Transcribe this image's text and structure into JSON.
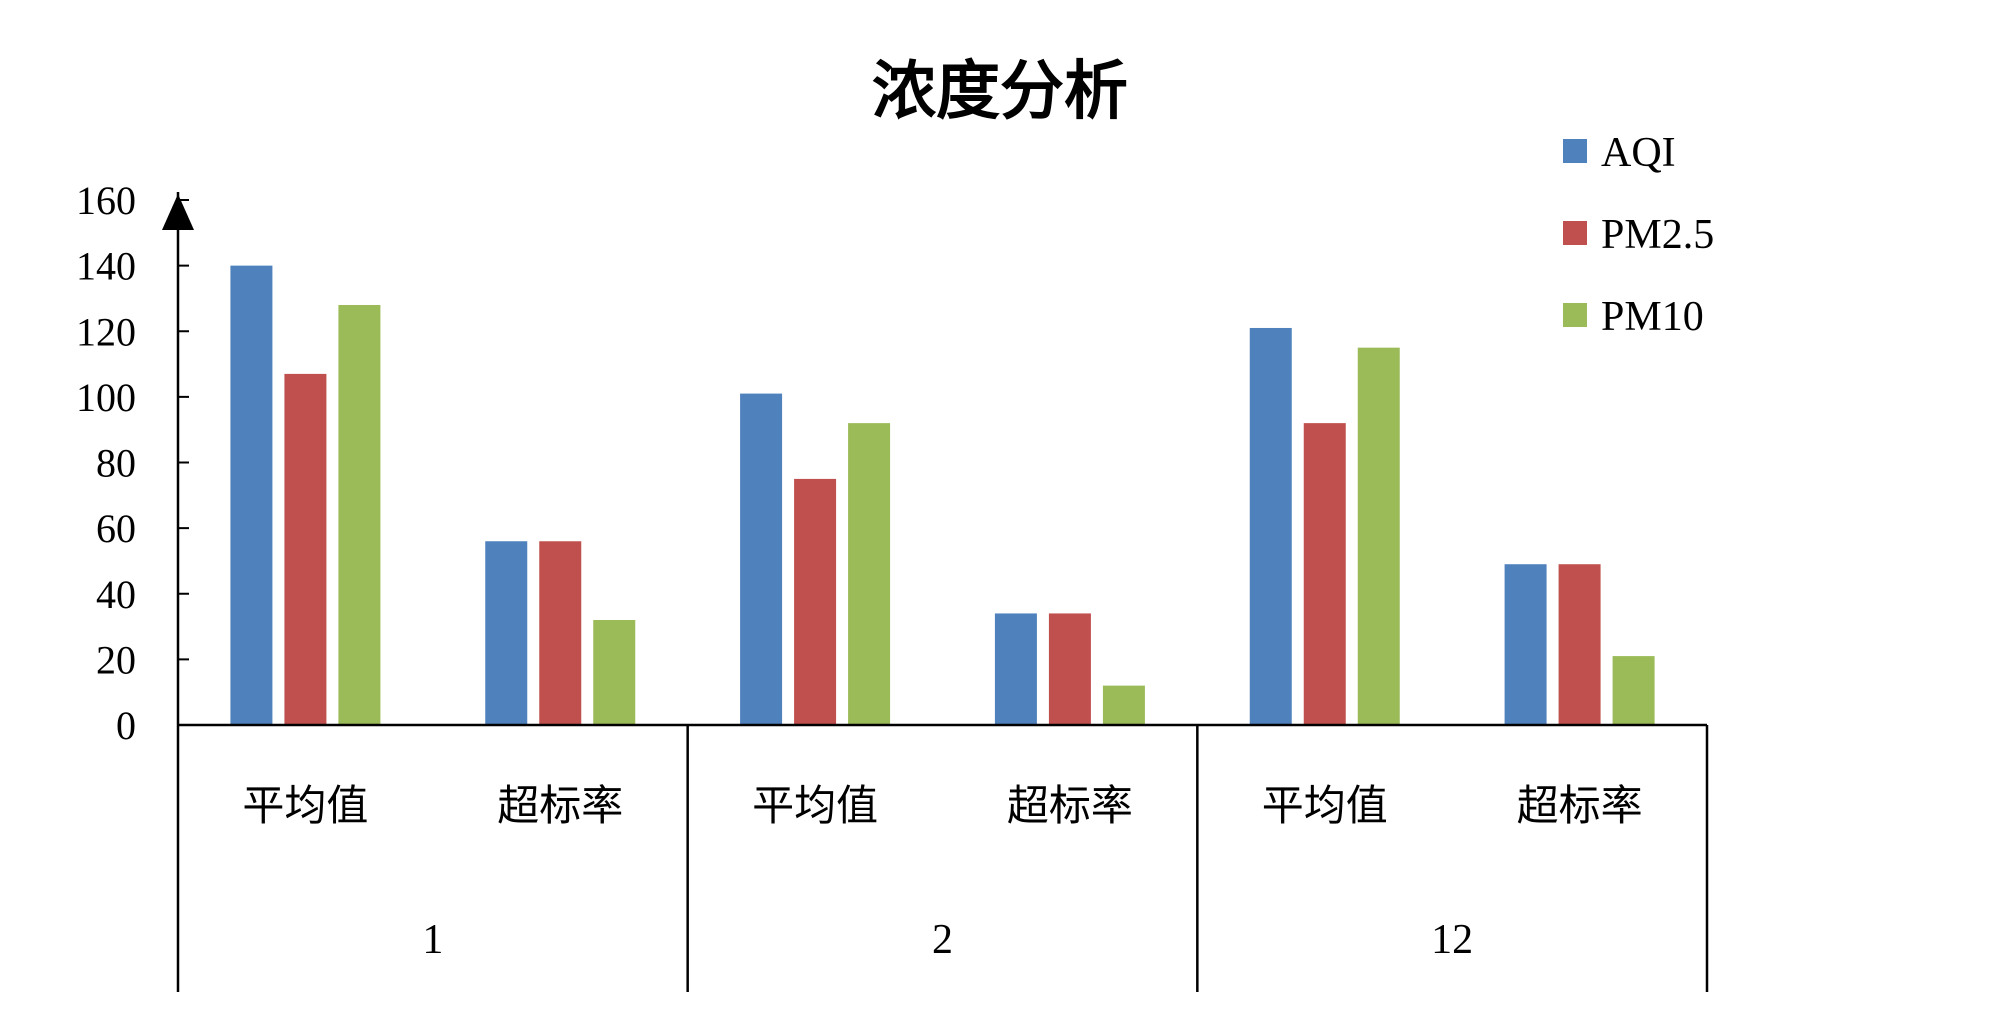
{
  "chart_data": {
    "type": "bar",
    "title": "浓度分析",
    "xlabel": "",
    "ylabel": "",
    "ylim": [
      0,
      160
    ],
    "yticks": [
      "0",
      "20",
      "40",
      "60",
      "80",
      "100",
      "120",
      "140",
      "160"
    ],
    "grid": false,
    "legend_position": "top-right",
    "groups": [
      {
        "label": "1",
        "categories": [
          "平均值",
          "超标率"
        ]
      },
      {
        "label": "2",
        "categories": [
          "平均值",
          "超标率"
        ]
      },
      {
        "label": "12",
        "categories": [
          "平均值",
          "超标率"
        ]
      }
    ],
    "series": [
      {
        "name": "AQI",
        "color": "#4F81BD",
        "values": [
          140,
          56,
          101,
          34,
          121,
          49
        ]
      },
      {
        "name": "PM2.5",
        "color": "#C0504D",
        "values": [
          107,
          56,
          75,
          34,
          92,
          49
        ]
      },
      {
        "name": "PM10",
        "color": "#9BBB59",
        "values": [
          128,
          32,
          92,
          12,
          115,
          21
        ]
      }
    ]
  }
}
